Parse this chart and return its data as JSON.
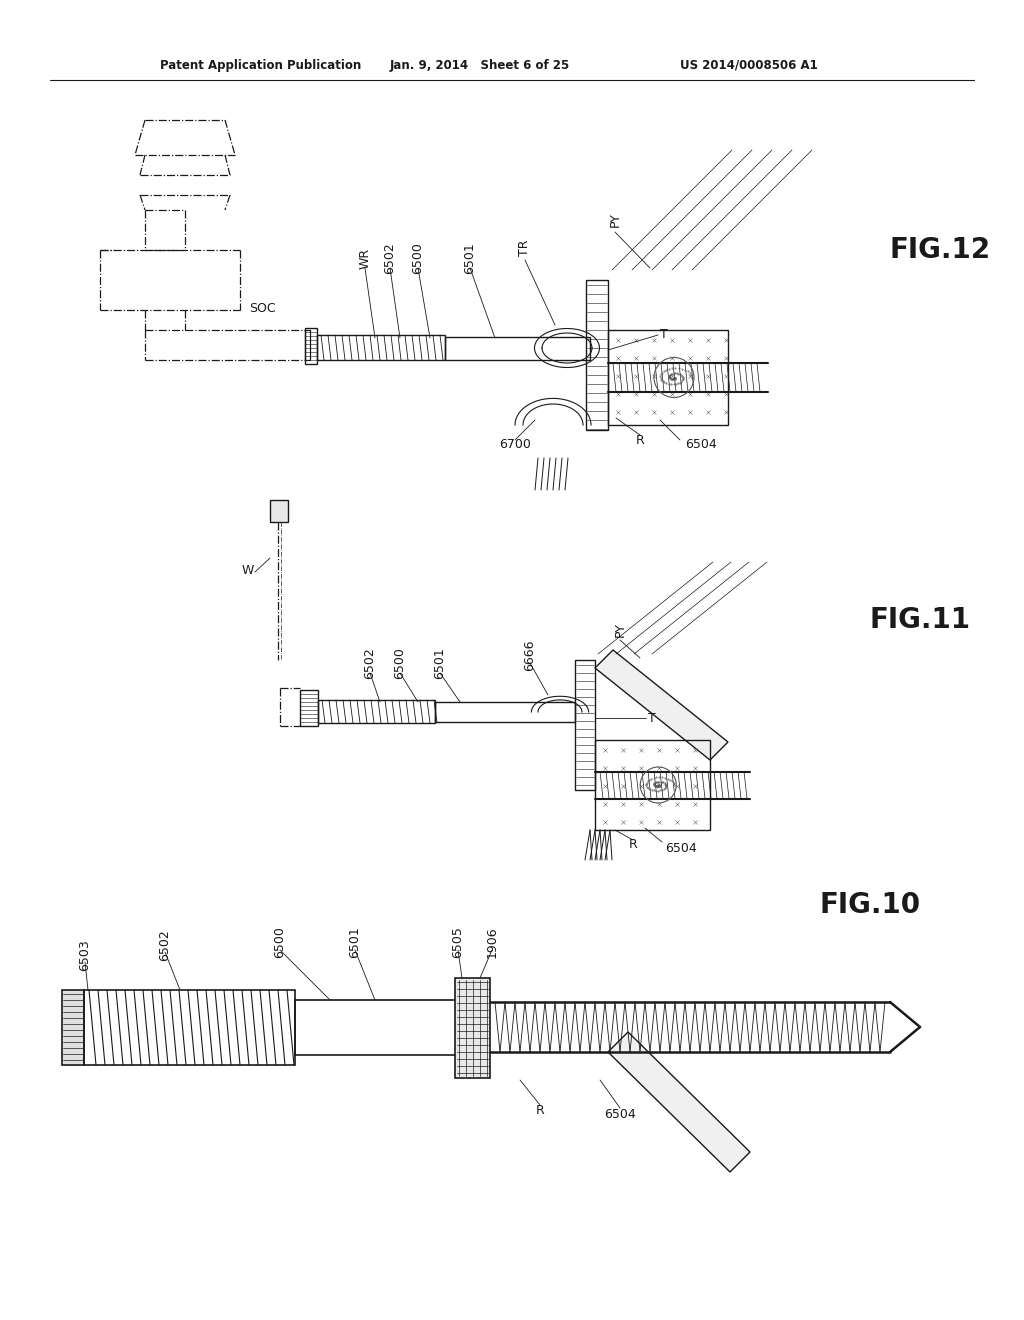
{
  "bg_color": "#ffffff",
  "header_text": "Patent Application Publication",
  "header_date": "Jan. 9, 2014   Sheet 6 of 25",
  "header_patent": "US 2014/0008506 A1",
  "lc": "#1a1a1a",
  "lw": 1.0
}
